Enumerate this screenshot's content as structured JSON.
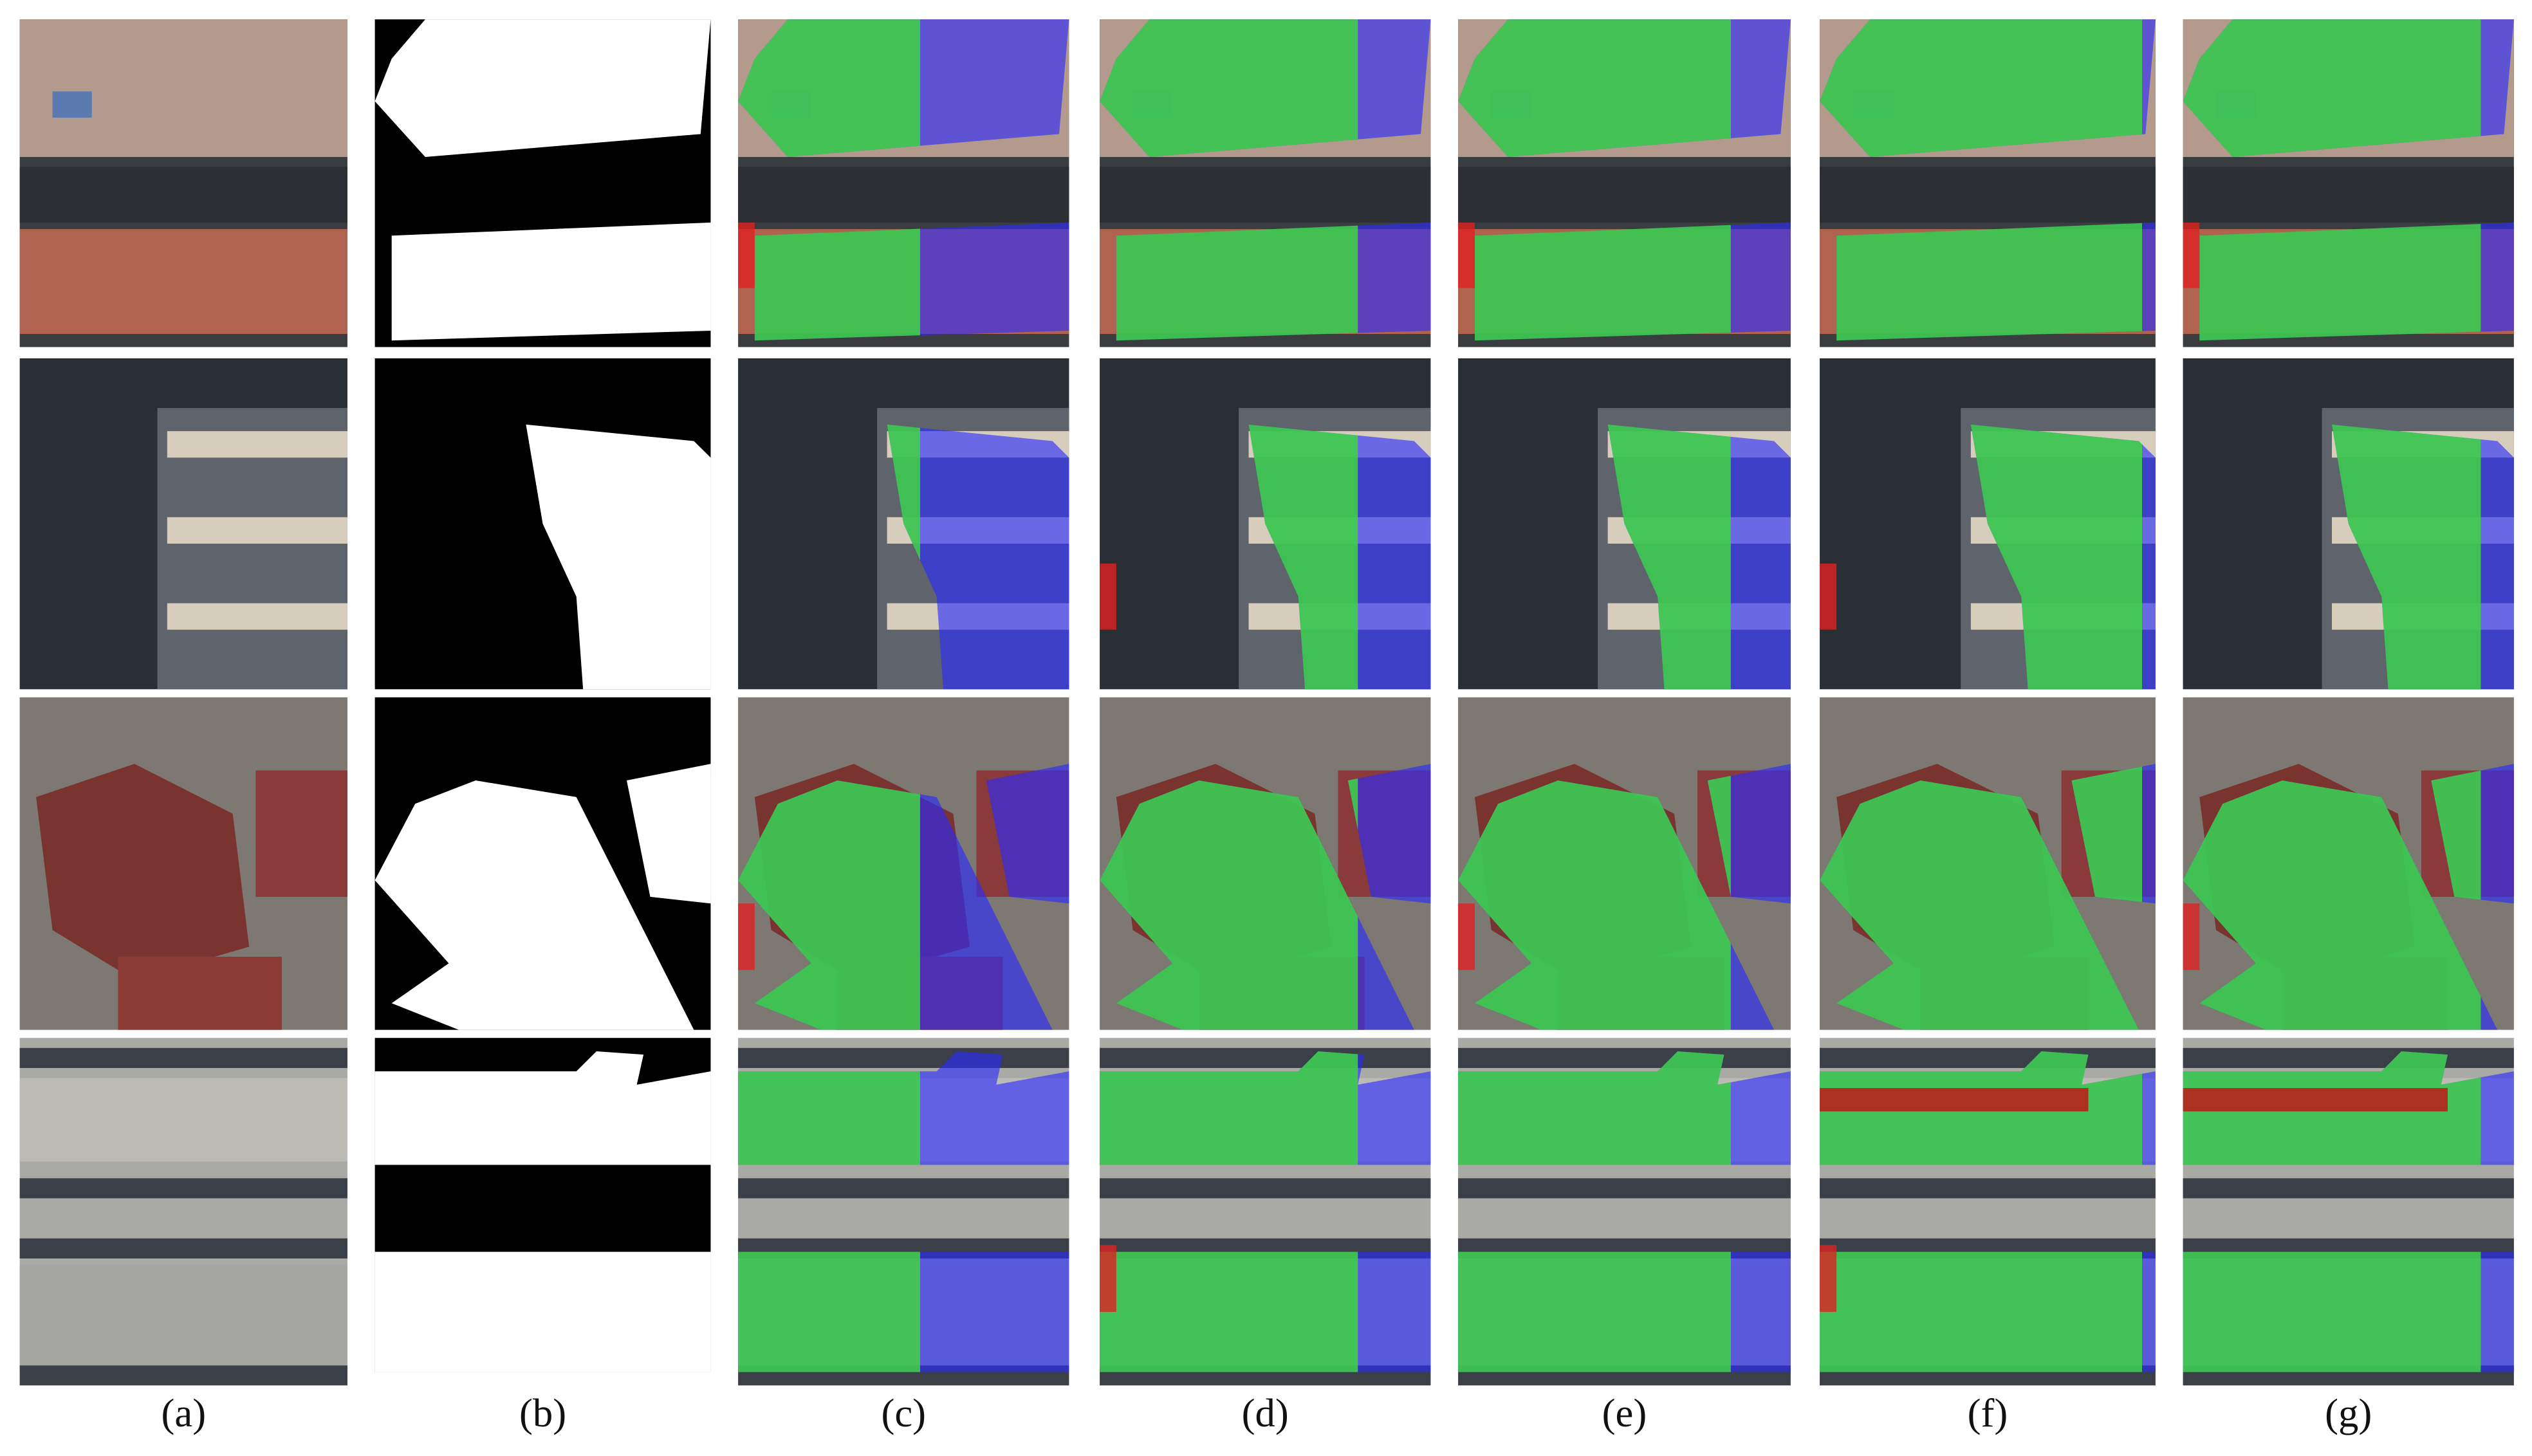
{
  "figure": {
    "column_labels": [
      "(a)",
      "(b)",
      "(c)",
      "(d)",
      "(e)",
      "(f)",
      "(g)"
    ]
  }
}
